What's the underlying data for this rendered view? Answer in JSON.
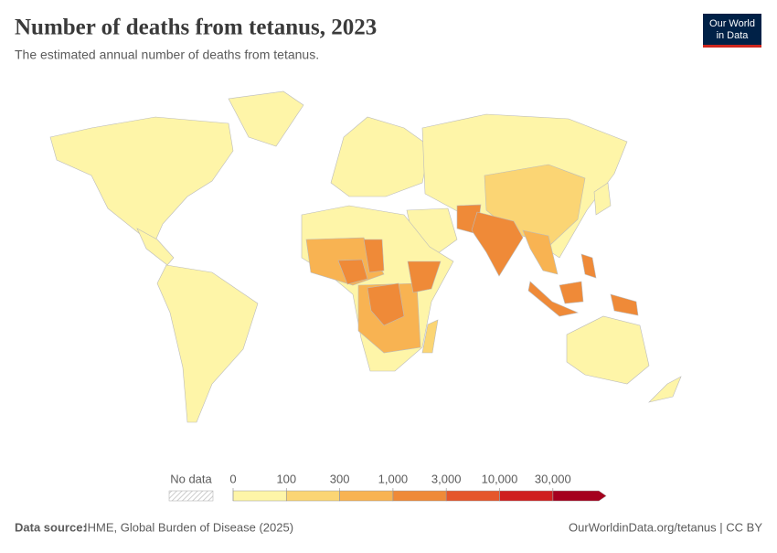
{
  "header": {
    "title": "Number of deaths from tetanus, 2023",
    "subtitle": "The estimated annual number of deaths from tetanus.",
    "logo": [
      "Our World",
      "in Data"
    ]
  },
  "legend": {
    "no_data": "No data",
    "ticks": [
      0,
      100,
      300,
      {
        "value": 1000,
        "label": "1,000"
      },
      {
        "value": 3000,
        "label": "3,000"
      },
      {
        "value": 10000,
        "label": "10,000"
      },
      {
        "value": 30000,
        "label": "30,000"
      }
    ],
    "colors": [
      "#fef5a8",
      "#fbd574",
      "#f8b352",
      "#ef8a38",
      "#e5562b",
      "#cf1f1f",
      "#a5001e"
    ]
  },
  "footer": {
    "source_label": "Data source:",
    "source": "IHME, Global Burden of Disease (2025)",
    "url": "OurWorldinData.org/tetanus | CC BY"
  }
}
